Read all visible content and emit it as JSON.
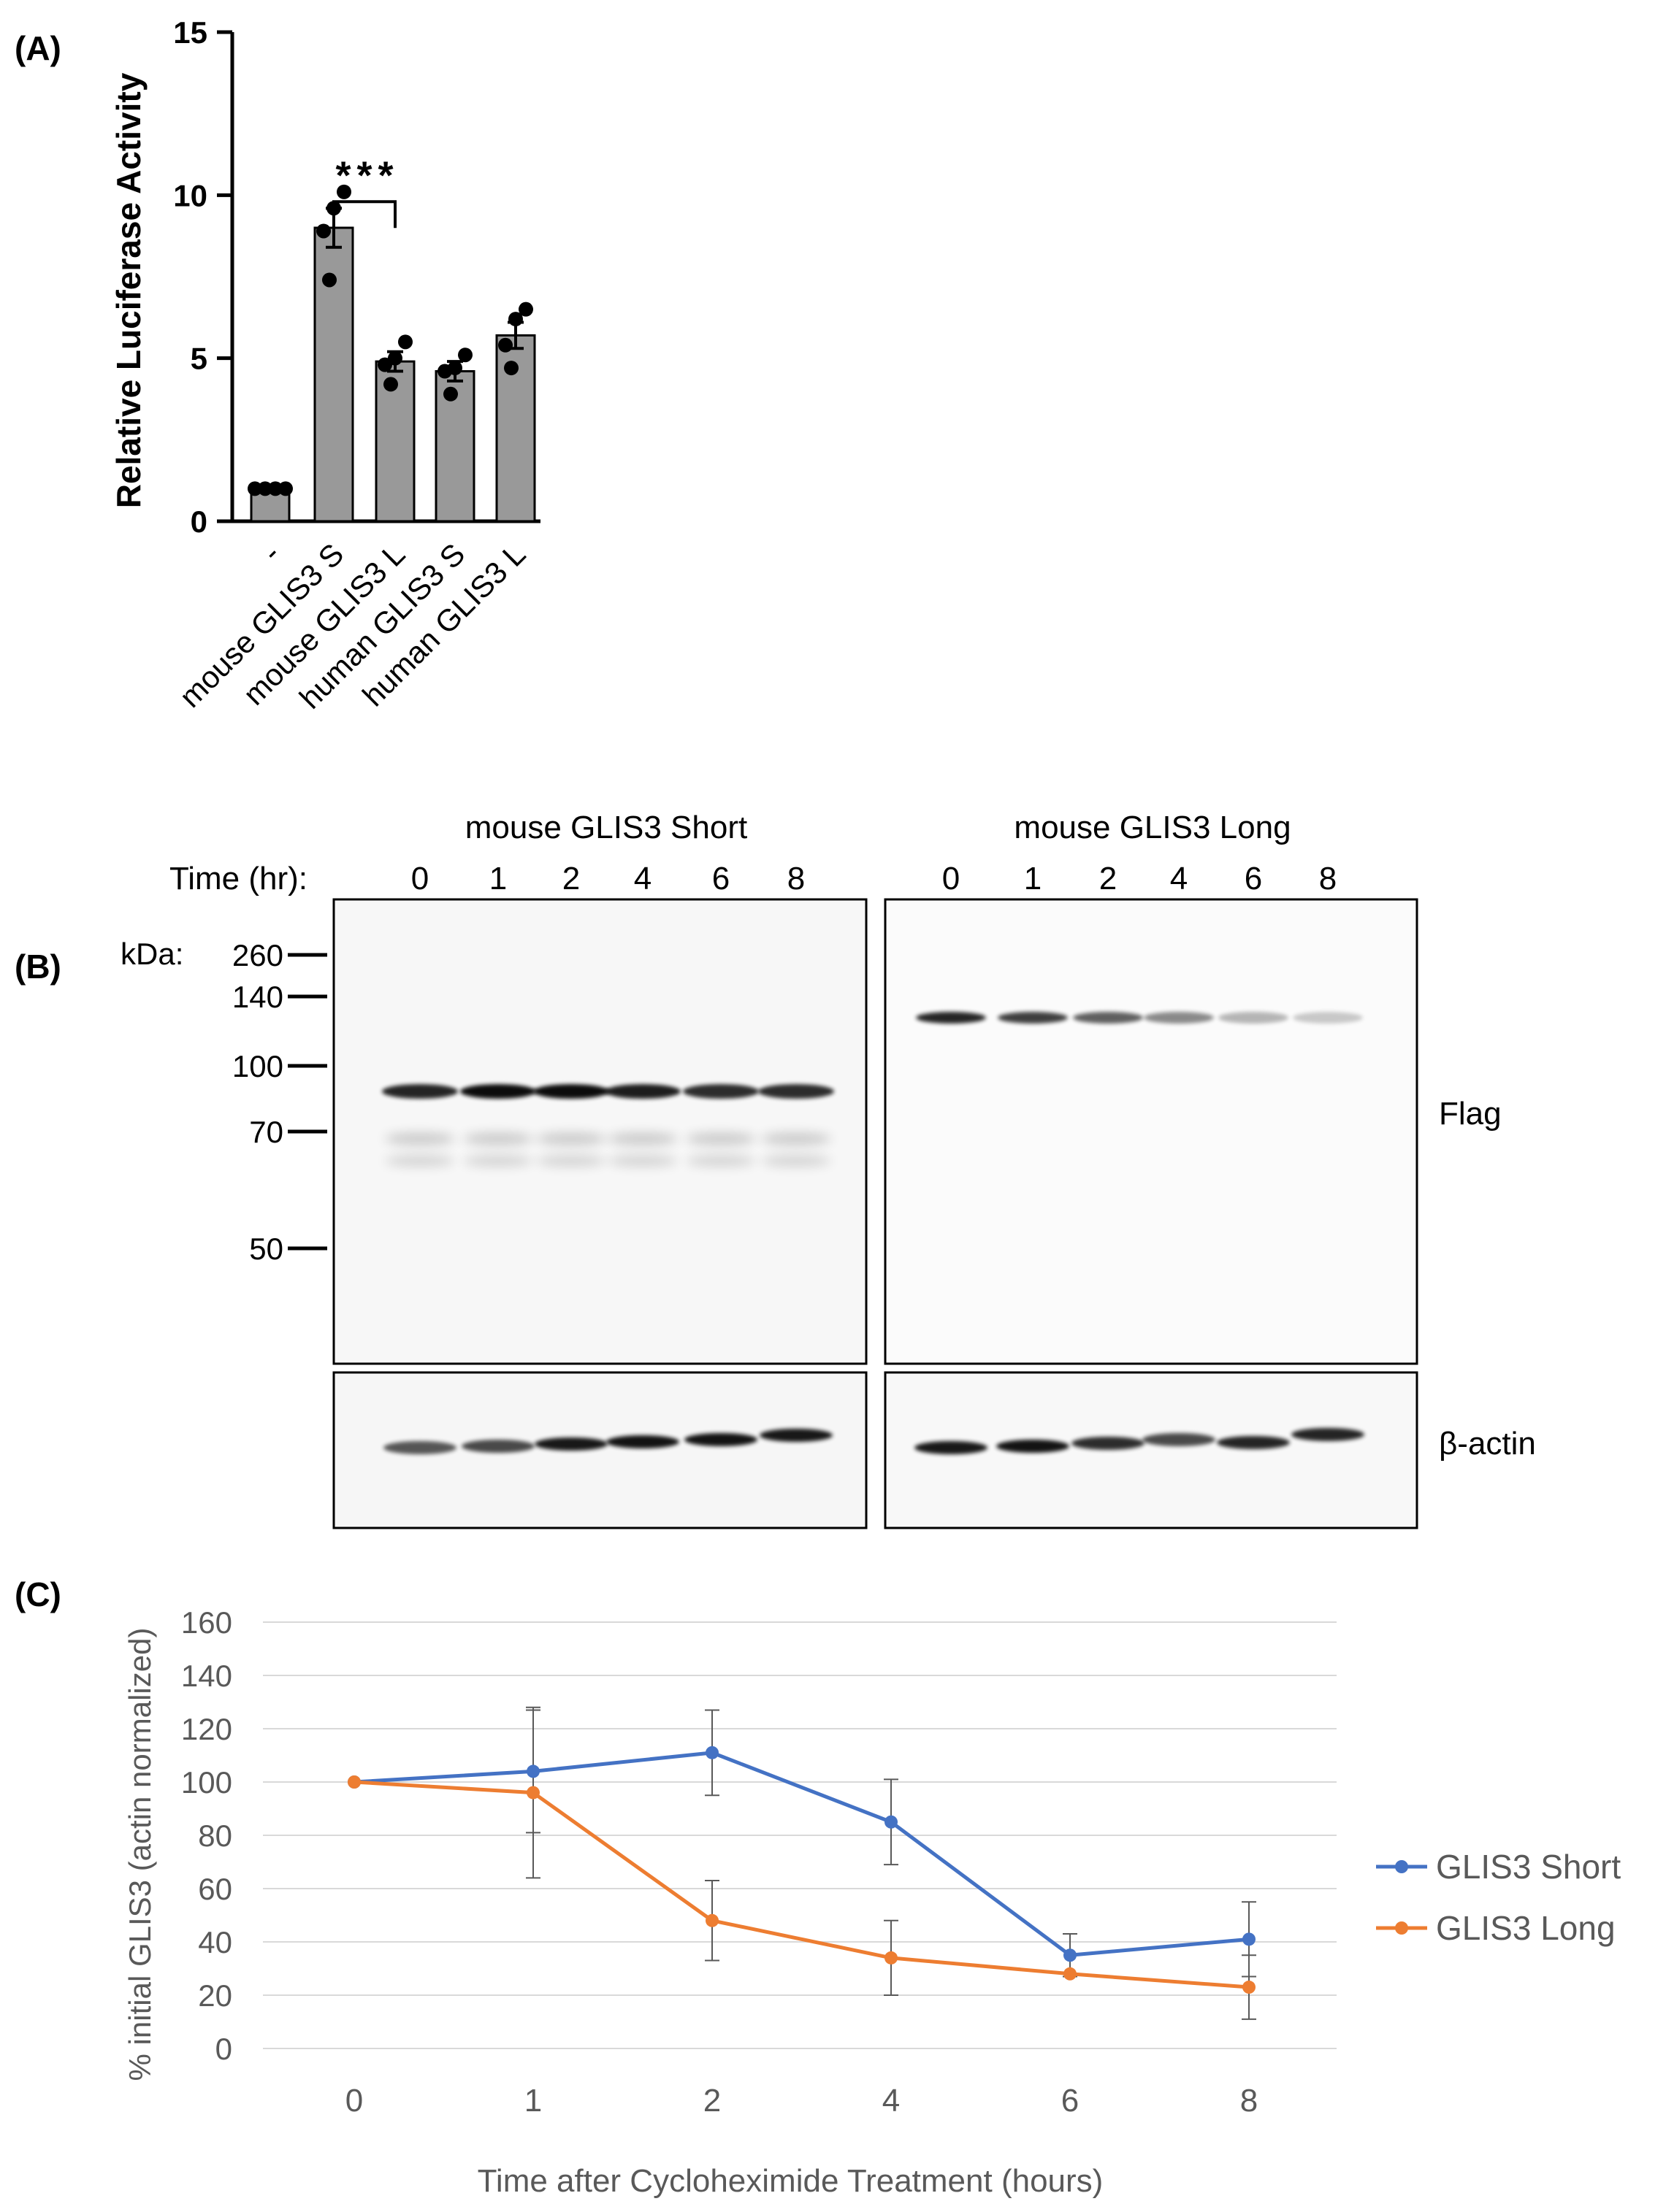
{
  "chart_data": [
    {
      "panel": "(A)",
      "type": "bar",
      "title": "",
      "xlabel": "",
      "ylabel": "Relative  Luciferase Activity",
      "ylim": [
        0,
        15
      ],
      "yticks": [
        "0",
        "5",
        "10",
        "15"
      ],
      "categories": [
        "-",
        "mouse GLIS3 S",
        "mouse GLIS3 L",
        "human GLIS3 S",
        "human GLIS3 L"
      ],
      "values": [
        1.0,
        9.0,
        4.9,
        4.6,
        5.7
      ],
      "errors": [
        0.02,
        0.6,
        0.3,
        0.3,
        0.4
      ],
      "points": [
        [
          1.0,
          1.0,
          1.0,
          1.0
        ],
        [
          10.1,
          9.6,
          8.9,
          7.4
        ],
        [
          5.5,
          5.0,
          4.8,
          4.2
        ],
        [
          5.1,
          4.7,
          4.6,
          3.9
        ],
        [
          6.5,
          6.2,
          5.4,
          4.7
        ]
      ],
      "significance": {
        "between": [
          1,
          2
        ],
        "label": "***",
        "y": 9.8
      },
      "grid": false
    },
    {
      "panel": "(C)",
      "type": "line",
      "title": "",
      "xlabel": "Time after Cycloheximide Treatment (hours)",
      "ylabel": "% initial GLIS3 (actin normalized)",
      "ylim": [
        0,
        160
      ],
      "yticks": [
        "0",
        "20",
        "40",
        "60",
        "80",
        "100",
        "120",
        "140",
        "160"
      ],
      "categories": [
        "0",
        "1",
        "2",
        "4",
        "6",
        "8"
      ],
      "series": [
        {
          "name": "GLIS3 Short",
          "color": "#4472C4",
          "values": [
            100,
            104,
            111,
            85,
            35,
            41
          ],
          "errors": [
            0,
            23,
            16,
            16,
            8,
            14
          ]
        },
        {
          "name": "GLIS3 Long",
          "color": "#ED7D31",
          "values": [
            100,
            96,
            48,
            34,
            28,
            23
          ],
          "errors": [
            0,
            32,
            15,
            14,
            0,
            12
          ]
        }
      ],
      "legend": "right",
      "grid": true
    }
  ],
  "blot": {
    "panel_label": "(B)",
    "kda_label": "kDa:",
    "time_label": "Time (hr):",
    "markers": [
      "260",
      "140",
      "100",
      "70",
      "50"
    ],
    "time_points": [
      "0",
      "1",
      "2",
      "4",
      "6",
      "8"
    ],
    "left_title": "mouse GLIS3 Short",
    "right_title": "mouse GLIS3 Long",
    "flag_label": "Flag",
    "actin_label": "β-actin"
  }
}
